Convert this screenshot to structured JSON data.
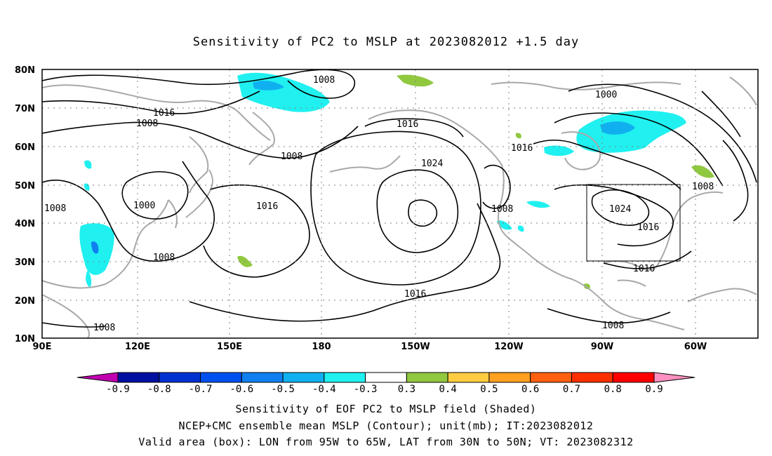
{
  "title": "Sensitivity of PC2 to MSLP at 2023082012 +1.5 day",
  "lat_labels": [
    "80N",
    "70N",
    "60N",
    "50N",
    "40N",
    "30N",
    "20N",
    "10N"
  ],
  "lon_labels": [
    "90E",
    "120E",
    "150E",
    "180",
    "150W",
    "120W",
    "90W",
    "60W"
  ],
  "contour_labels": [
    "1008",
    "1016",
    "1008",
    "1008",
    "1016",
    "1024",
    "1016",
    "1008",
    "1000",
    "1008",
    "1016",
    "1008",
    "1024",
    "1016",
    "1016",
    "1008",
    "1016",
    "1008",
    "1000",
    "1008"
  ],
  "colorbar": {
    "labels": [
      "-0.9",
      "-0.8",
      "-0.7",
      "-0.6",
      "-0.5",
      "-0.4",
      "-0.3",
      "0.3",
      "0.4",
      "0.5",
      "0.6",
      "0.7",
      "0.8",
      "0.9"
    ],
    "colors": [
      "#c000b0",
      "#0010a0",
      "#0030d0",
      "#0050f0",
      "#1080f0",
      "#10b0f0",
      "#20f0f0",
      "#ffffff",
      "#90c840",
      "#ffcc40",
      "#ffa020",
      "#ff6010",
      "#ff3000",
      "#ff0000",
      "#ff90c0"
    ]
  },
  "caption": {
    "line1": "Sensitivity of EOF PC2 to MSLP field (Shaded)",
    "line2": "NCEP+CMC ensemble mean MSLP (Contour); unit(mb); IT:2023082012",
    "line3": "Valid area (box): LON from 95W to 65W, LAT from 30N to 50N; VT: 2023082312"
  }
}
